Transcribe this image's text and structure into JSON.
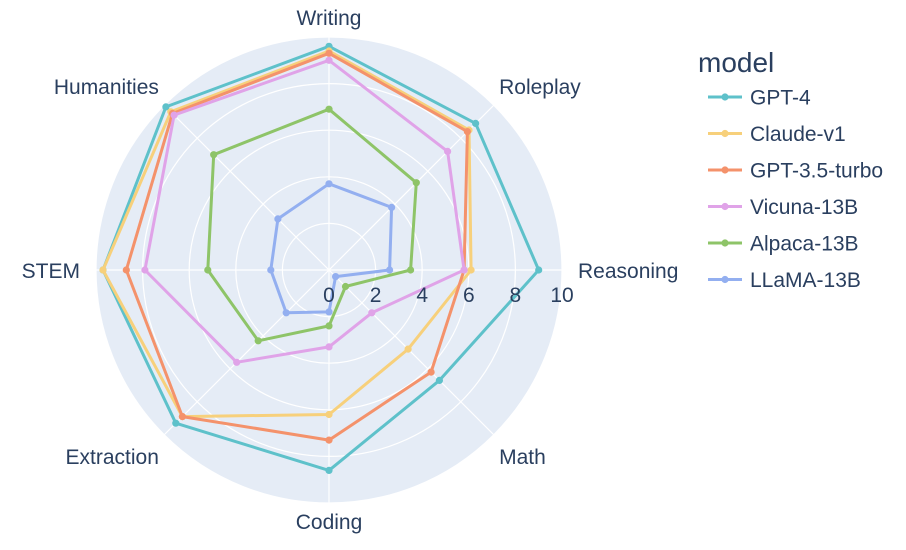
{
  "chart_data": {
    "type": "radar",
    "axes": [
      "Writing",
      "Roleplay",
      "Reasoning",
      "Math",
      "Coding",
      "Extraction",
      "STEM",
      "Humanities"
    ],
    "radial_ticks": [
      "0",
      "2",
      "4",
      "6",
      "8",
      "10"
    ],
    "range": [
      0,
      10
    ],
    "legend_title": "model",
    "legend_position": "right",
    "grid": true,
    "series": [
      {
        "name": "GPT-4",
        "color": "#5ec1ca",
        "values": [
          9.6,
          8.9,
          9.0,
          6.7,
          8.6,
          9.3,
          9.7,
          9.9
        ]
      },
      {
        "name": "Claude-v1",
        "color": "#f7d07b",
        "values": [
          9.4,
          8.5,
          6.1,
          4.8,
          6.2,
          8.9,
          9.7,
          9.6
        ]
      },
      {
        "name": "GPT-3.5-turbo",
        "color": "#f4926b",
        "values": [
          9.3,
          8.4,
          5.8,
          6.2,
          7.3,
          8.9,
          8.7,
          9.5
        ]
      },
      {
        "name": "Vicuna-13B",
        "color": "#e0a3e8",
        "values": [
          9.0,
          7.2,
          5.8,
          2.6,
          3.3,
          5.6,
          7.9,
          9.4
        ]
      },
      {
        "name": "Alpaca-13B",
        "color": "#8ec468",
        "values": [
          6.9,
          5.3,
          3.5,
          1.0,
          2.4,
          4.3,
          5.2,
          7.0
        ]
      },
      {
        "name": "LLaMA-13B",
        "color": "#93aff0",
        "values": [
          3.7,
          3.8,
          2.6,
          0.4,
          1.8,
          2.6,
          2.5,
          3.1
        ]
      }
    ]
  }
}
